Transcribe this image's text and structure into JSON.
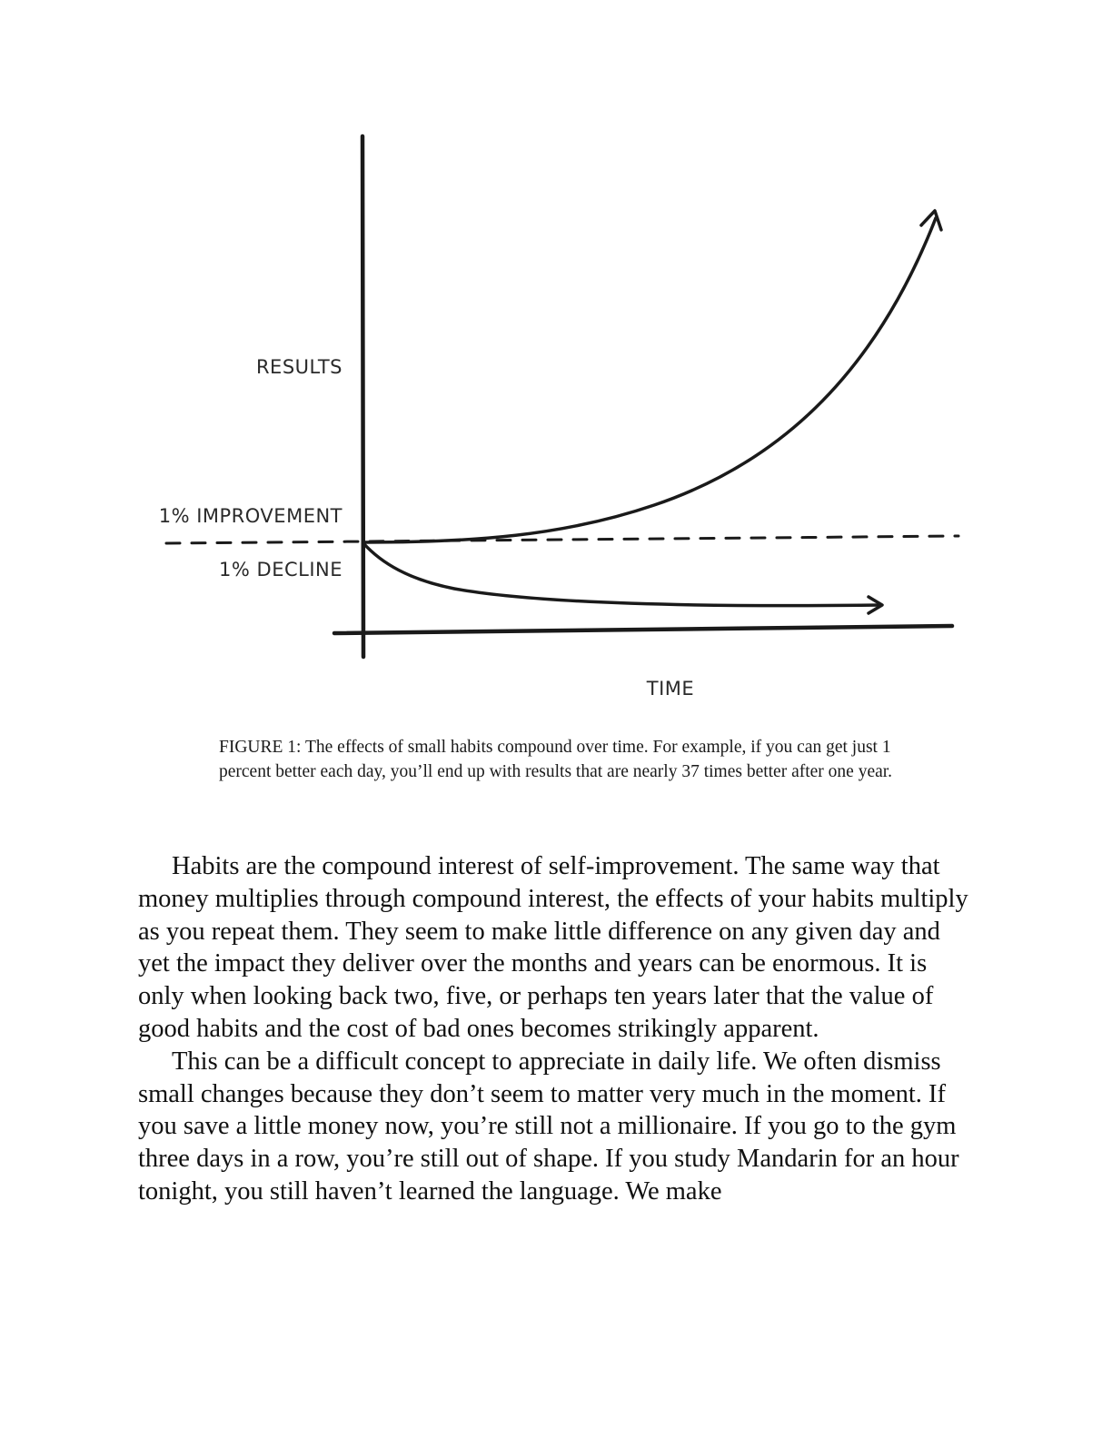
{
  "figure": {
    "labels": {
      "results": "RESULTS",
      "improvement": "1% IMPROVEMENT",
      "decline": "1% DECLINE",
      "time": "TIME"
    },
    "caption": "FIGURE 1: The effects of small habits compound over time. For example, if you can get just 1 percent better each day, you’ll end up with results that are nearly 37 times better after one year."
  },
  "chart_data": {
    "type": "line",
    "title": "",
    "xlabel": "TIME",
    "ylabel": "RESULTS",
    "series": [
      {
        "name": "1% IMPROVEMENT"
      },
      {
        "name": "1% DECLINE"
      }
    ],
    "baseline": "dashed horizontal line at starting value",
    "grid": false
  },
  "body": {
    "paragraphs": [
      "Habits are the compound interest of self-improvement. The same way that money multiplies through compound interest, the effects of your habits multiply as you repeat them. They seem to make little difference on any given day and yet the impact they deliver over the months and years can be enormous. It is only when looking back two, five, or perhaps ten years later that the value of good habits and the cost of bad ones becomes strikingly apparent.",
      "This can be a difficult concept to appreciate in daily life. We often dismiss small changes because they don’t seem to matter very much in the moment. If you save a little money now, you’re still not a millionaire. If you go to the gym three days in a row, you’re still out of shape. If you study Mandarin for an hour tonight, you still haven’t learned the language. We make"
    ]
  }
}
